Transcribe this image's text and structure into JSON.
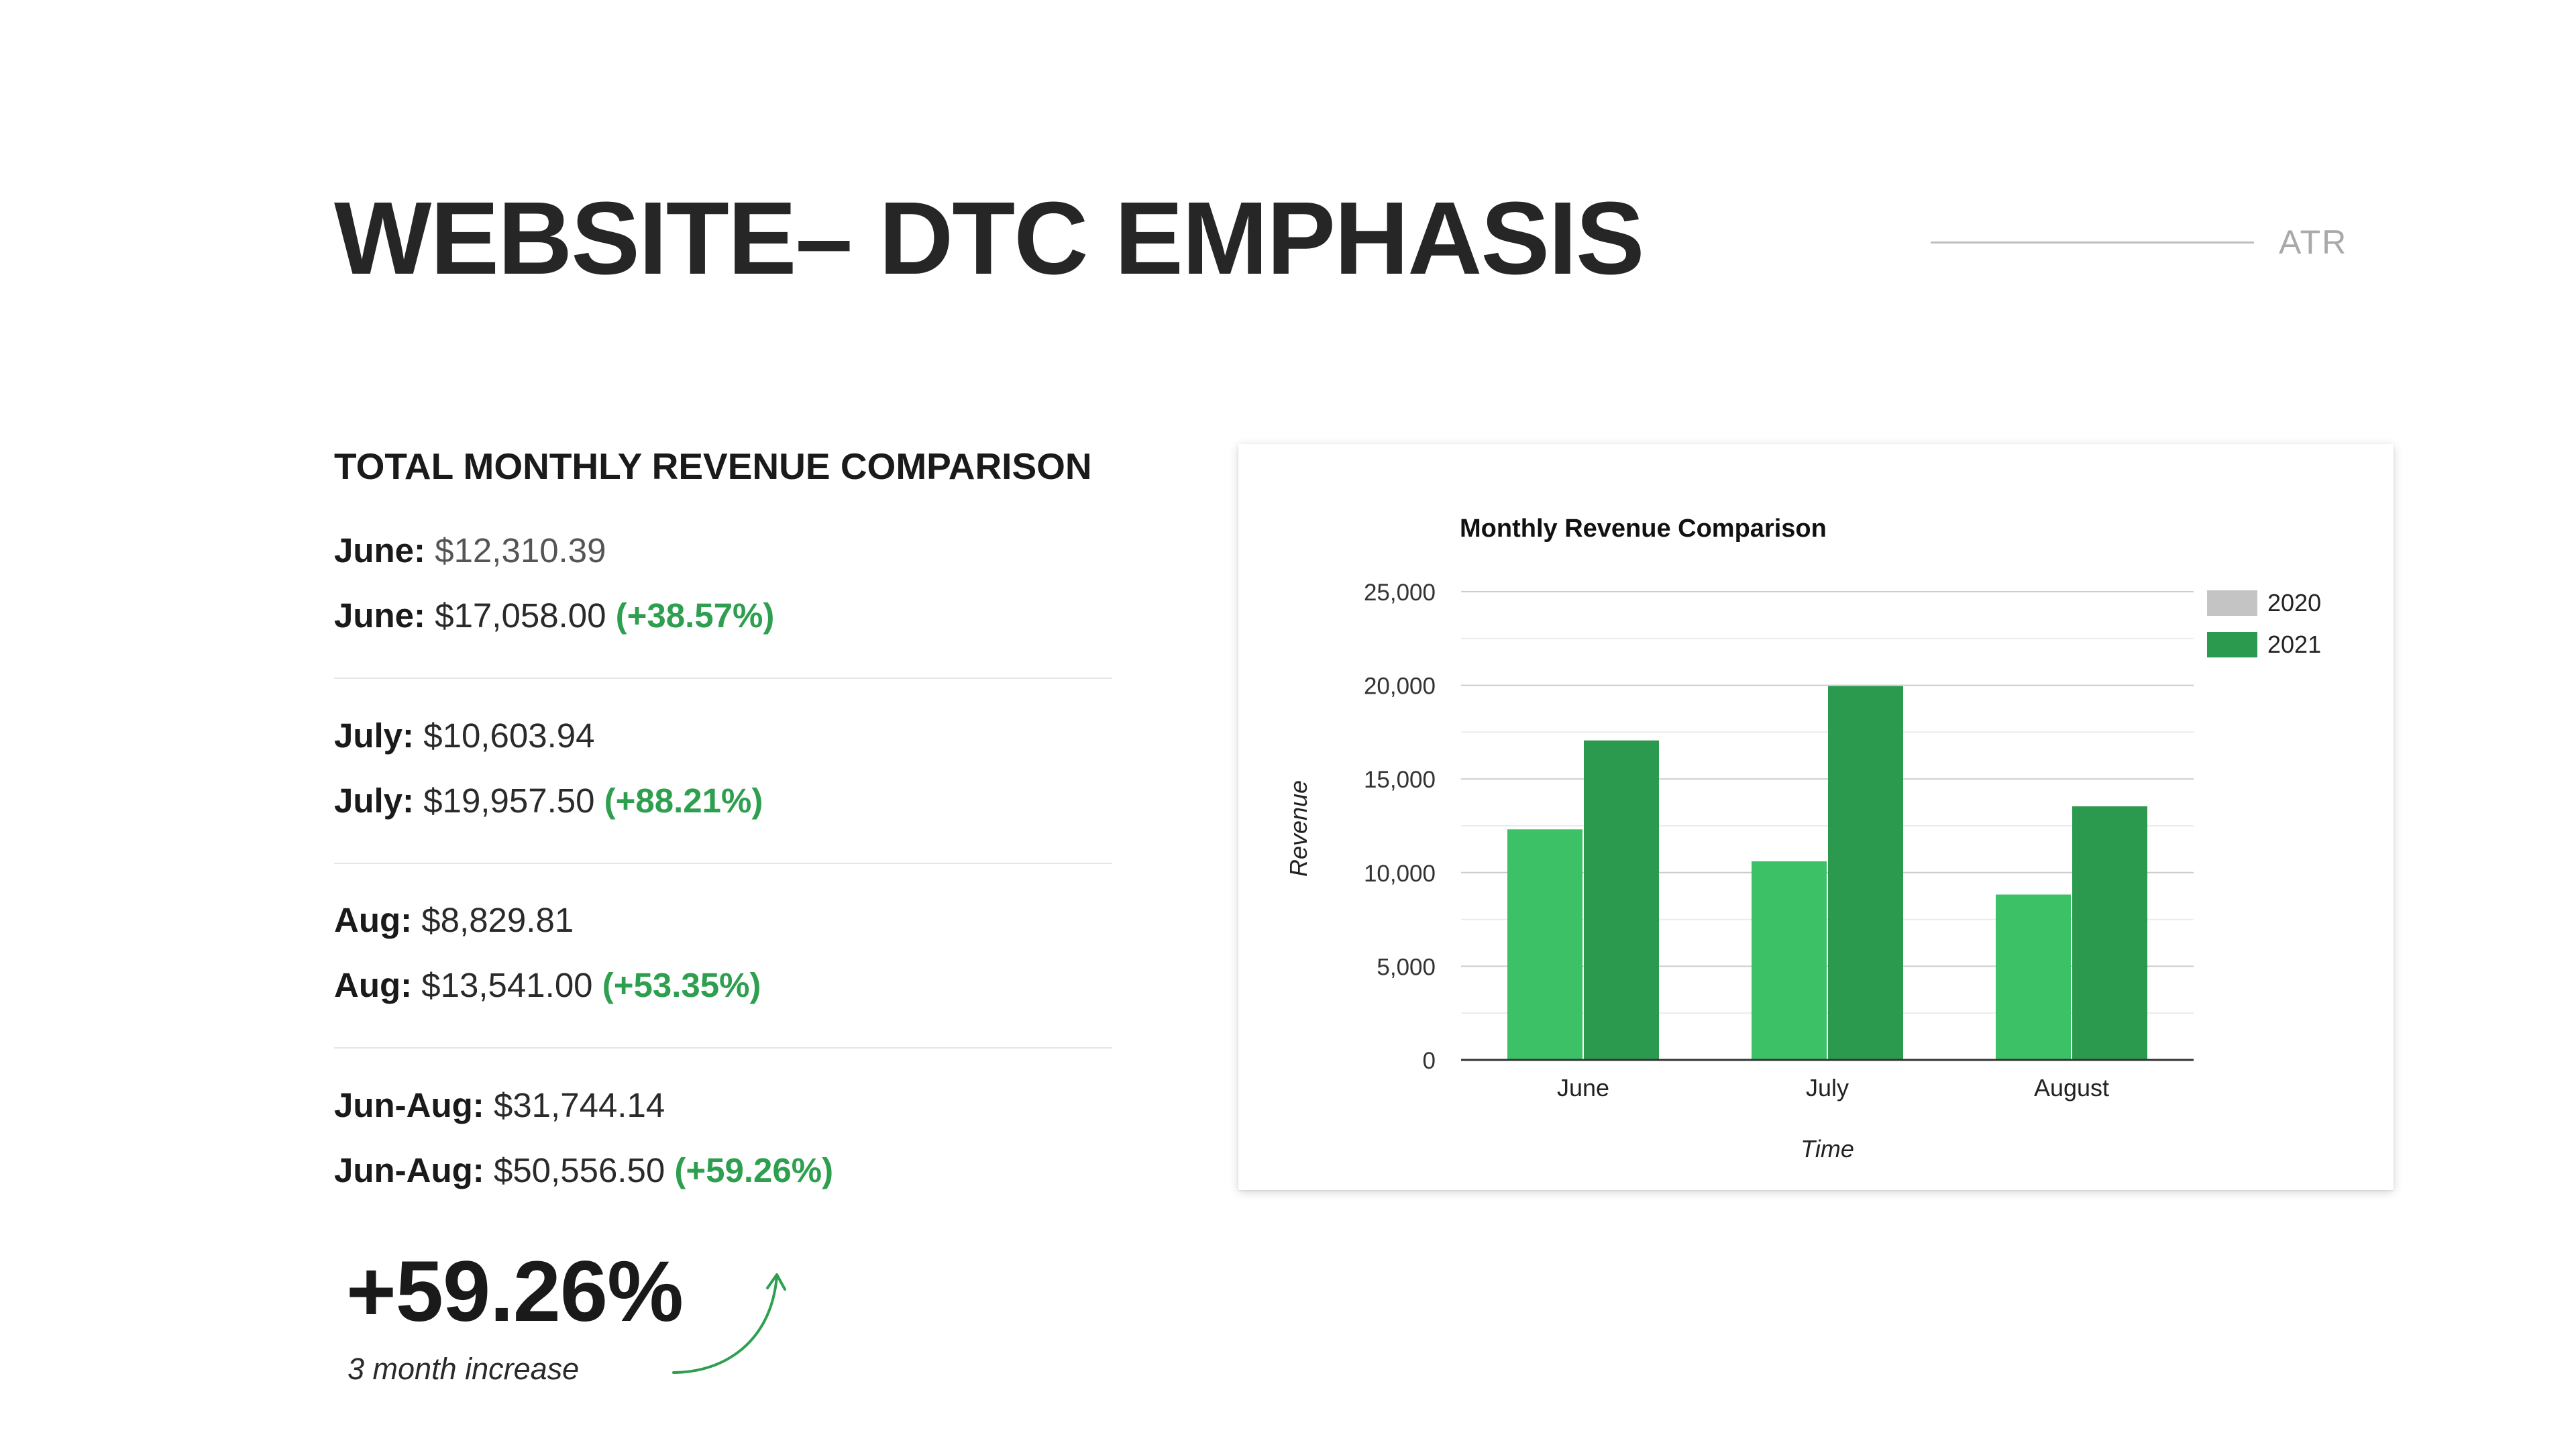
{
  "header": {
    "title": "WEBSITE– DTC EMPHASIS",
    "brand": "ATR"
  },
  "summary": {
    "section_title": "TOTAL MONTHLY REVENUE COMPARISON",
    "groups": [
      {
        "line1": {
          "label": "June:",
          "value": "$12,310.39"
        },
        "line2": {
          "label": "June:",
          "value": "$17,058.00",
          "change": "(+38.57%)"
        }
      },
      {
        "line1": {
          "label": "July:",
          "value": "$10,603.94"
        },
        "line2": {
          "label": "July:",
          "value": "$19,957.50",
          "change": "(+88.21%)"
        }
      },
      {
        "line1": {
          "label": "Aug:",
          "value": "$8,829.81"
        },
        "line2": {
          "label": "Aug:",
          "value": "$13,541.00",
          "change": "(+53.35%)"
        }
      },
      {
        "line1": {
          "label": "Jun-Aug:",
          "value": "$31,744.14"
        },
        "line2": {
          "label": "Jun-Aug:",
          "value": "$50,556.50",
          "change": "(+59.26%)"
        }
      }
    ],
    "highlight": {
      "value": "+59.26%",
      "caption": "3 month increase"
    }
  },
  "colors": {
    "accent_green": "#2e9e4f",
    "series_2020": "#3cc166",
    "series_2021": "#2b9a4f",
    "legend_2020": "#c4c4c4"
  },
  "chart_data": {
    "type": "bar",
    "title": "Monthly Revenue Comparison",
    "xlabel": "Time",
    "ylabel": "Revenue",
    "categories": [
      "June",
      "July",
      "August"
    ],
    "series": [
      {
        "name": "2020",
        "values": [
          12310.39,
          10603.94,
          8829.81
        ]
      },
      {
        "name": "2021",
        "values": [
          17058.0,
          19957.5,
          13541.0
        ]
      }
    ],
    "ylim": [
      0,
      25000
    ],
    "yticks": [
      "0",
      "5,000",
      "10,000",
      "15,000",
      "20,000",
      "25,000"
    ],
    "ytick_values": [
      0,
      5000,
      10000,
      15000,
      20000,
      25000
    ],
    "grid": true,
    "legend": "right"
  }
}
